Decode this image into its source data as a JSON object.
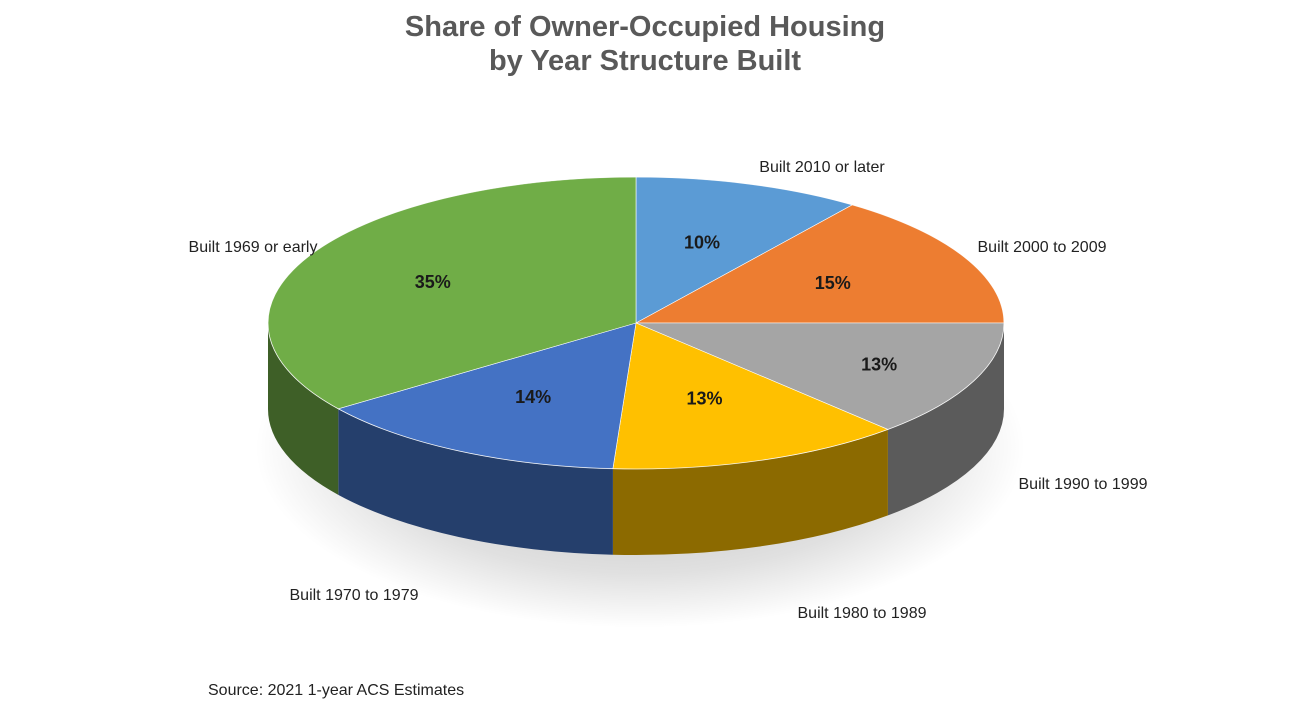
{
  "chart_data": {
    "type": "pie",
    "title": [
      "Share of Owner-Occupied Housing",
      "by Year Structure Built"
    ],
    "slices": [
      {
        "label": "Built 2010 or later",
        "value": 10,
        "value_label": "10%",
        "color": "#5B9BD5"
      },
      {
        "label": "Built 2000 to 2009",
        "value": 15,
        "value_label": "15%",
        "color": "#ED7D31"
      },
      {
        "label": "Built 1990 to 1999",
        "value": 13,
        "value_label": "13%",
        "color": "#A5A5A5"
      },
      {
        "label": "Built 1980 to 1989",
        "value": 13,
        "value_label": "13%",
        "color": "#FFC000"
      },
      {
        "label": "Built 1970 to 1979",
        "value": 14,
        "value_label": "14%",
        "color": "#4472C4"
      },
      {
        "label": "Built 1969 or early",
        "value": 35,
        "value_label": "35%",
        "color": "#70AD47"
      }
    ],
    "start": "12 o'clock",
    "direction": "clockwise",
    "style": "3d-tilted"
  },
  "source": "Source: 2021 1-year ACS Estimates"
}
